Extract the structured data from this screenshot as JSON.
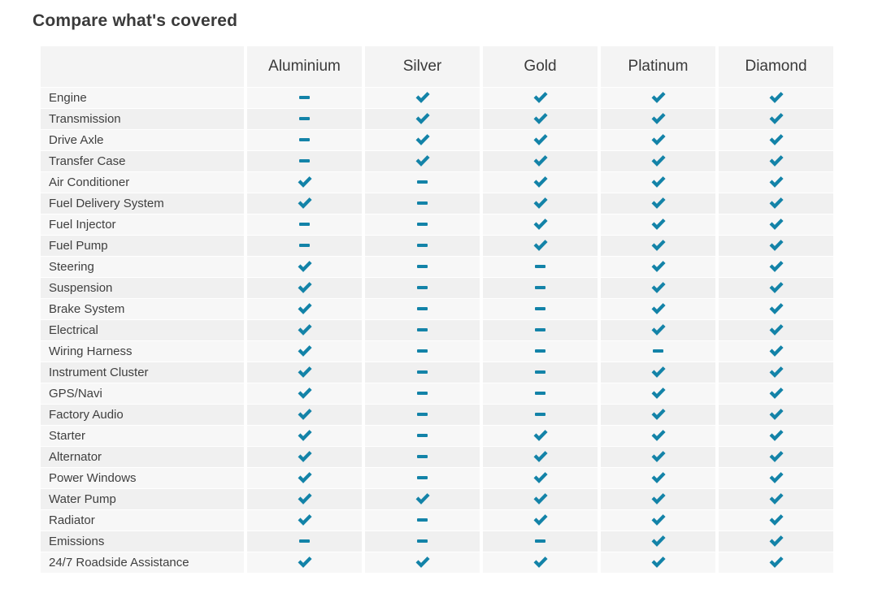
{
  "page": {
    "title": "Compare what's covered"
  },
  "colors": {
    "accent_teal": "#1383a8",
    "header_bg": "#f4f4f4",
    "row_odd_bg": "#f7f7f7",
    "row_even_bg": "#f0f0f0",
    "text_dark": "#3a3a3a"
  },
  "icons": {
    "covered": "check-icon",
    "not_covered": "dash-icon"
  },
  "table": {
    "columns": [
      "",
      "Aluminium",
      "Silver",
      "Gold",
      "Platinum",
      "Diamond"
    ],
    "rows": [
      {
        "label": "Engine",
        "values": [
          "dash",
          "check",
          "check",
          "check",
          "check"
        ]
      },
      {
        "label": "Transmission",
        "values": [
          "dash",
          "check",
          "check",
          "check",
          "check"
        ]
      },
      {
        "label": "Drive Axle",
        "values": [
          "dash",
          "check",
          "check",
          "check",
          "check"
        ]
      },
      {
        "label": "Transfer Case",
        "values": [
          "dash",
          "check",
          "check",
          "check",
          "check"
        ]
      },
      {
        "label": "Air Conditioner",
        "values": [
          "check",
          "dash",
          "check",
          "check",
          "check"
        ]
      },
      {
        "label": "Fuel Delivery System",
        "values": [
          "check",
          "dash",
          "check",
          "check",
          "check"
        ]
      },
      {
        "label": "Fuel Injector",
        "values": [
          "dash",
          "dash",
          "check",
          "check",
          "check"
        ]
      },
      {
        "label": "Fuel Pump",
        "values": [
          "dash",
          "dash",
          "check",
          "check",
          "check"
        ]
      },
      {
        "label": "Steering",
        "values": [
          "check",
          "dash",
          "dash",
          "check",
          "check"
        ]
      },
      {
        "label": "Suspension",
        "values": [
          "check",
          "dash",
          "dash",
          "check",
          "check"
        ]
      },
      {
        "label": "Brake System",
        "values": [
          "check",
          "dash",
          "dash",
          "check",
          "check"
        ]
      },
      {
        "label": "Electrical",
        "values": [
          "check",
          "dash",
          "dash",
          "check",
          "check"
        ]
      },
      {
        "label": "Wiring Harness",
        "values": [
          "check",
          "dash",
          "dash",
          "dash",
          "check"
        ]
      },
      {
        "label": "Instrument Cluster",
        "values": [
          "check",
          "dash",
          "dash",
          "check",
          "check"
        ]
      },
      {
        "label": "GPS/Navi",
        "values": [
          "check",
          "dash",
          "dash",
          "check",
          "check"
        ]
      },
      {
        "label": "Factory Audio",
        "values": [
          "check",
          "dash",
          "dash",
          "check",
          "check"
        ]
      },
      {
        "label": "Starter",
        "values": [
          "check",
          "dash",
          "check",
          "check",
          "check"
        ]
      },
      {
        "label": "Alternator",
        "values": [
          "check",
          "dash",
          "check",
          "check",
          "check"
        ]
      },
      {
        "label": "Power Windows",
        "values": [
          "check",
          "dash",
          "check",
          "check",
          "check"
        ]
      },
      {
        "label": "Water Pump",
        "values": [
          "check",
          "check",
          "check",
          "check",
          "check"
        ]
      },
      {
        "label": "Radiator",
        "values": [
          "check",
          "dash",
          "check",
          "check",
          "check"
        ]
      },
      {
        "label": "Emissions",
        "values": [
          "dash",
          "dash",
          "dash",
          "check",
          "check"
        ]
      },
      {
        "label": "24/7 Roadside Assistance",
        "values": [
          "check",
          "check",
          "check",
          "check",
          "check"
        ]
      }
    ]
  }
}
